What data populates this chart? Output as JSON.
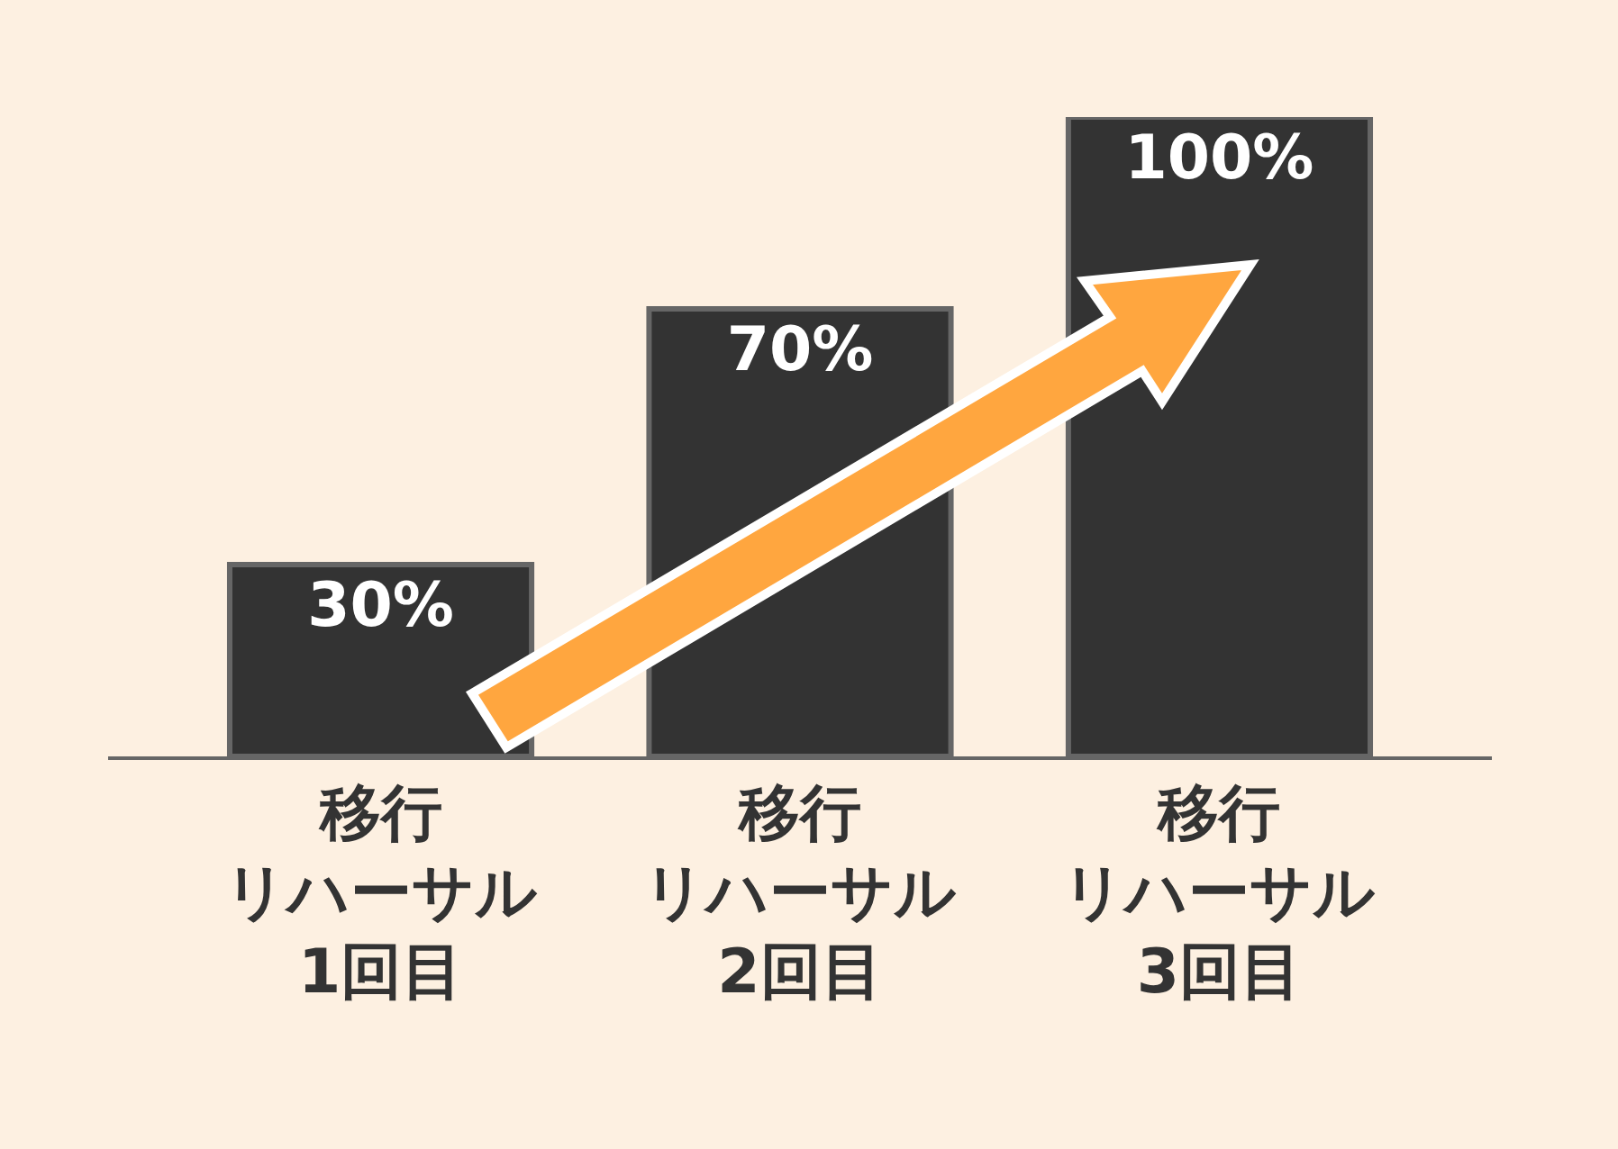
{
  "chart_data": {
    "type": "bar",
    "categories": [
      "移行リハーサル1回目",
      "移行リハーサル2回目",
      "移行リハーサル3回目"
    ],
    "values": [
      30,
      70,
      100
    ],
    "value_labels": [
      "30%",
      "70%",
      "100%"
    ],
    "color": "#333333",
    "tick_labels": "x"
  }
}
